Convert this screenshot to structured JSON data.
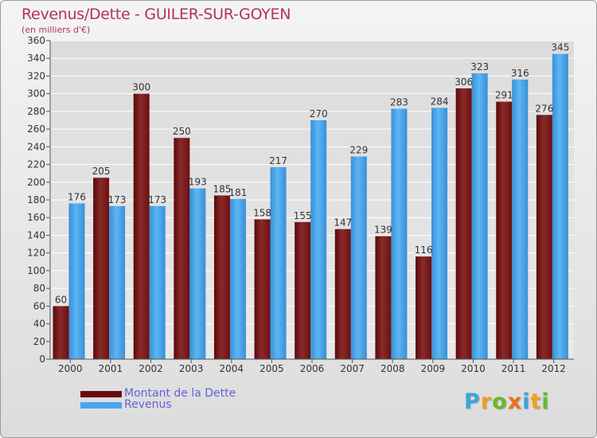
{
  "header": {
    "title": "Revenus/Dette - GUILER-SUR-GOYEN",
    "subtitle": "(en milliers d'€)"
  },
  "colors": {
    "title": "#b4325a",
    "dette": "#7a1c1c",
    "revenus": "#4aa6ec",
    "legend_text": "#6262d8",
    "grid": "#ffffff"
  },
  "legend": {
    "position": "bottom-left",
    "items": [
      {
        "label": "Montant de la Dette",
        "color": "#6a0c0c"
      },
      {
        "label": "Revenus",
        "color": "#4aa6ec"
      }
    ]
  },
  "brand": {
    "text": "Proxiti",
    "letters": [
      {
        "ch": "P",
        "color": "#3aa5d8"
      },
      {
        "ch": "r",
        "color": "#f0a020"
      },
      {
        "ch": "o",
        "color": "#66b82e"
      },
      {
        "ch": "x",
        "color": "#e8701a"
      },
      {
        "ch": "i",
        "color": "#3aa5d8"
      },
      {
        "ch": "t",
        "color": "#f0a020"
      },
      {
        "ch": "i",
        "color": "#66b82e"
      }
    ]
  },
  "chart_data": {
    "type": "bar",
    "title": "Revenus/Dette - GUILER-SUR-GOYEN",
    "subtitle": "(en milliers d'€)",
    "xlabel": "",
    "ylabel": "",
    "categories": [
      "2000",
      "2001",
      "2002",
      "2003",
      "2004",
      "2005",
      "2006",
      "2007",
      "2008",
      "2009",
      "2010",
      "2011",
      "2012"
    ],
    "series": [
      {
        "name": "Montant de la Dette",
        "values": [
          60,
          205,
          300,
          250,
          185,
          158,
          155,
          147,
          139,
          116,
          306,
          291,
          276
        ]
      },
      {
        "name": "Revenus",
        "values": [
          176,
          173,
          173,
          193,
          181,
          217,
          270,
          229,
          283,
          284,
          323,
          316,
          345
        ]
      }
    ],
    "ylim": [
      0,
      360
    ],
    "yticks": [
      0,
      20,
      40,
      60,
      80,
      100,
      120,
      140,
      160,
      180,
      200,
      220,
      240,
      260,
      280,
      300,
      320,
      340,
      360
    ],
    "grid": true,
    "legend": "bottom-left",
    "data_labels": true
  }
}
